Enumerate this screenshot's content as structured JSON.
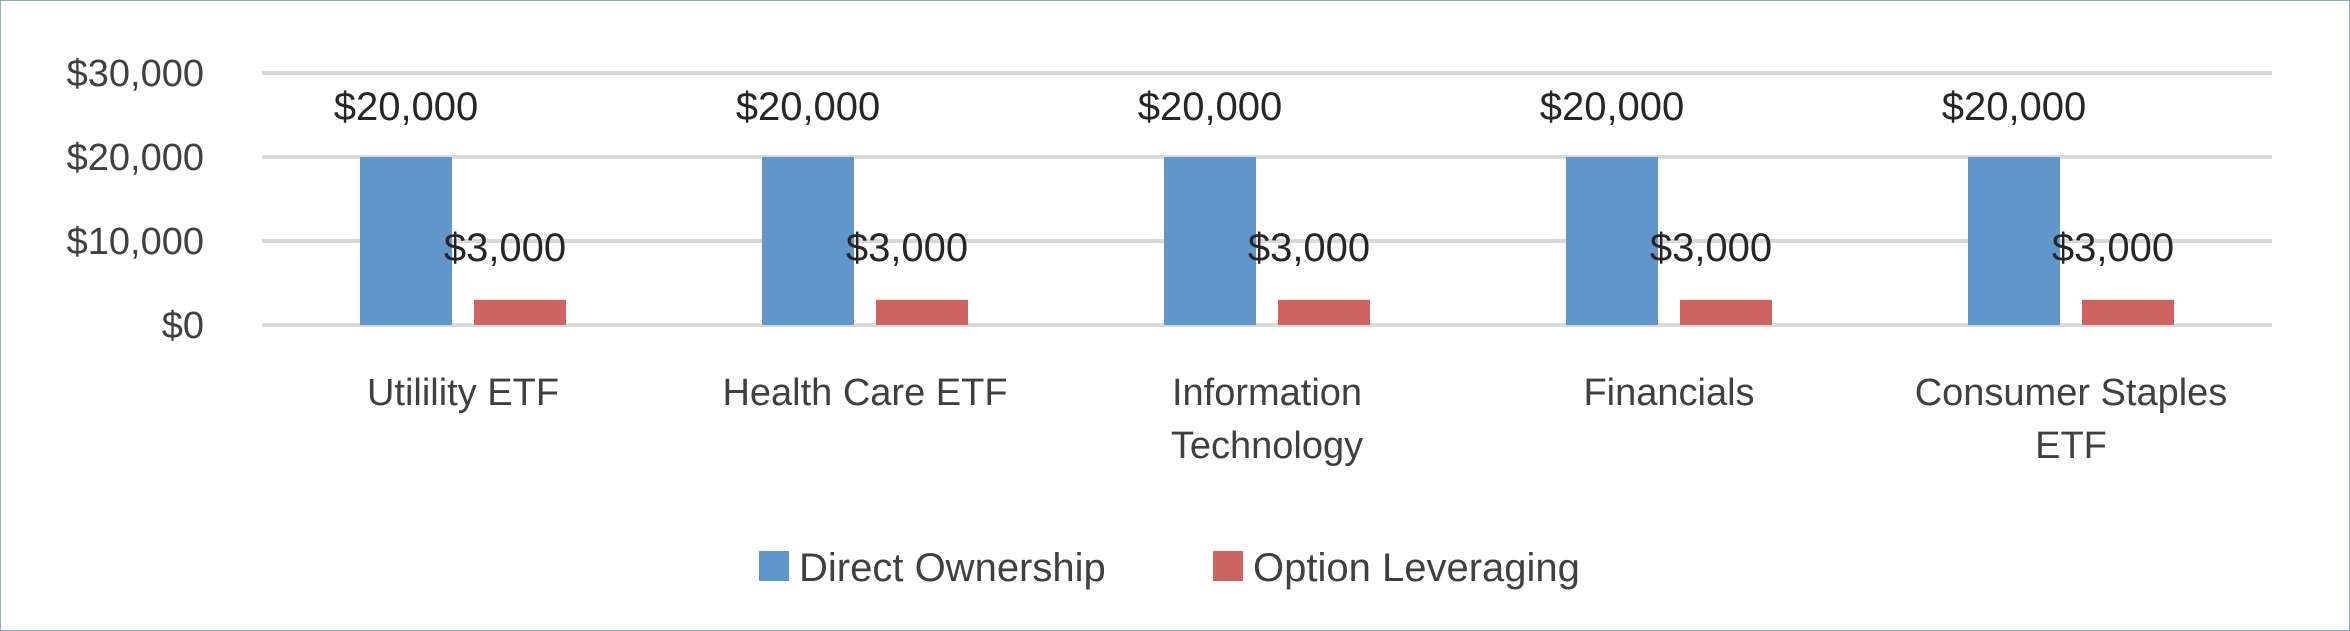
{
  "chart_data": {
    "type": "bar",
    "categories": [
      [
        "Utilility ETF"
      ],
      [
        "Health Care ETF"
      ],
      [
        "Information",
        "Technology"
      ],
      [
        "Financials"
      ],
      [
        "Consumer Staples",
        "ETF"
      ]
    ],
    "series": [
      {
        "name": "Direct Ownership",
        "color": "#6096CA",
        "values": [
          20000,
          20000,
          20000,
          20000,
          20000
        ],
        "labels": [
          "$20,000",
          "$20,000",
          "$20,000",
          "$20,000",
          "$20,000"
        ]
      },
      {
        "name": "Option Leveraging",
        "color": "#CE6462",
        "values": [
          3000,
          3000,
          3000,
          3000,
          3000
        ],
        "labels": [
          "$3,000",
          "$3,000",
          "$3,000",
          "$3,000",
          "$3,000"
        ]
      }
    ],
    "y_ticks": [
      0,
      10000,
      20000,
      30000
    ],
    "y_tick_labels": [
      "$0",
      "$10,000",
      "$20,000",
      "$30,000"
    ],
    "ylim": [
      0,
      30000
    ],
    "grid": true,
    "gridline_color": "#d9d9d9",
    "legend_position": "bottom",
    "title": "",
    "xlabel": "",
    "ylabel": ""
  }
}
